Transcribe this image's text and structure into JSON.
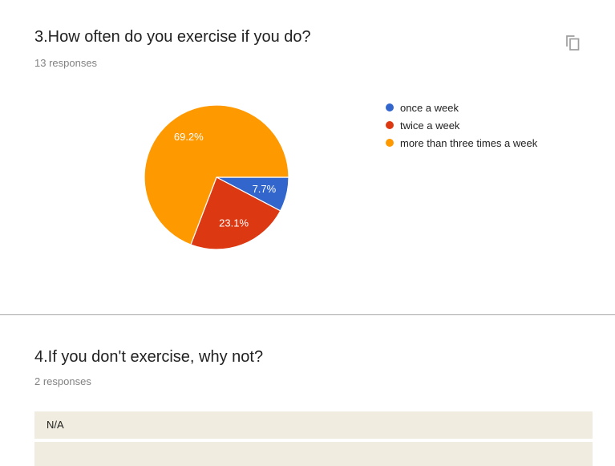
{
  "question3": {
    "title": "3.How often do you exercise if you do?",
    "responses": "13 responses"
  },
  "chart_data": {
    "type": "pie",
    "title": "3.How often do you exercise if you do?",
    "labels": [
      "once a week",
      "twice a week",
      "more than three times a week"
    ],
    "values": [
      7.7,
      23.1,
      69.2
    ],
    "slice_labels": [
      "7.7%",
      "23.1%",
      "69.2%"
    ],
    "colors": [
      "#3366cc",
      "#dc3912",
      "#ff9900"
    ],
    "slice_stroke": "#ffffff",
    "legend_position": "right",
    "start_angle_deg": 0,
    "direction": "clockwise"
  },
  "question4": {
    "title": "4.If you don't exercise, why not?",
    "responses": "2 responses",
    "answers": [
      {
        "text": "N/A"
      },
      {
        "text": ""
      }
    ]
  },
  "icons": {
    "copy": "content-copy-icon"
  },
  "colors": {
    "card_background": "#ffffff",
    "title_text": "#212121",
    "subtitle_text": "#828282",
    "answer_chip_background": "#f0ede0",
    "card_divider": "#a6a6a6",
    "copy_icon": "#9e9e9e",
    "pie_label_text": "#ffffff"
  }
}
